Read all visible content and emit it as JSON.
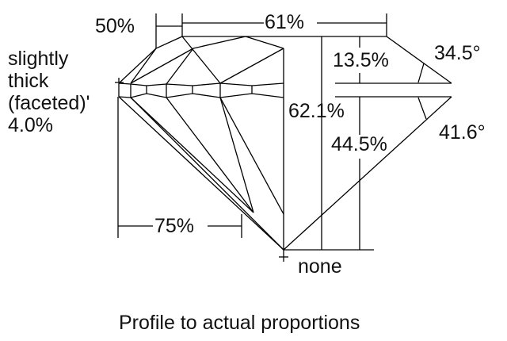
{
  "labels": {
    "table_to_star": "50%",
    "table": "61%",
    "girdle_line1": "slightly",
    "girdle_line2": "thick",
    "girdle_line3": "(faceted)'",
    "girdle_percent": "4.0%",
    "crown_height": "13.5%",
    "crown_angle": "34.5°",
    "total_depth": "62.1%",
    "pavilion_depth": "44.5%",
    "pavilion_angle": "41.6°",
    "lower_girdle": "75%",
    "culet": "none"
  },
  "caption": "Profile to actual proportions",
  "colors": {
    "line": "#000000",
    "background": "#ffffff"
  }
}
